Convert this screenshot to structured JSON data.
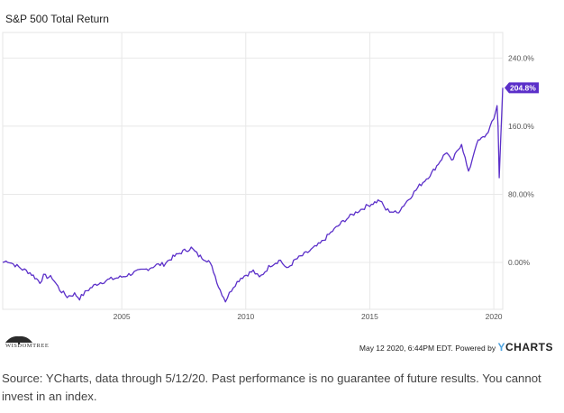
{
  "chart_data": {
    "type": "line",
    "title": "S&P 500 Total Return",
    "x_start": 2000.2,
    "x_end": 2020.36,
    "x_ticks": [
      "2005",
      "2010",
      "2015",
      "2020"
    ],
    "y_ticks": [
      "0.00%",
      "80.00%",
      "160.0%",
      "240.0%"
    ],
    "ylim": [
      -55,
      270
    ],
    "grid": true,
    "series": [
      {
        "color": "#5b2fc9",
        "last_label": "204.8%",
        "points": [
          [
            2000.2,
            0
          ],
          [
            2000.4,
            2
          ],
          [
            2000.7,
            -3
          ],
          [
            2001.0,
            -8
          ],
          [
            2001.3,
            -12
          ],
          [
            2001.7,
            -23
          ],
          [
            2001.85,
            -16
          ],
          [
            2002.2,
            -18
          ],
          [
            2002.5,
            -32
          ],
          [
            2002.8,
            -40
          ],
          [
            2003.1,
            -37
          ],
          [
            2003.3,
            -42
          ],
          [
            2003.6,
            -33
          ],
          [
            2004.0,
            -25
          ],
          [
            2004.5,
            -20
          ],
          [
            2005.0,
            -17
          ],
          [
            2005.5,
            -12
          ],
          [
            2006.0,
            -8
          ],
          [
            2006.4,
            -3
          ],
          [
            2006.7,
            -2
          ],
          [
            2007.0,
            5
          ],
          [
            2007.4,
            12
          ],
          [
            2007.8,
            17
          ],
          [
            2008.1,
            8
          ],
          [
            2008.5,
            2
          ],
          [
            2008.7,
            -10
          ],
          [
            2008.9,
            -28
          ],
          [
            2009.18,
            -45
          ],
          [
            2009.5,
            -28
          ],
          [
            2009.8,
            -18
          ],
          [
            2010.3,
            -10
          ],
          [
            2010.55,
            -18
          ],
          [
            2011.0,
            -3
          ],
          [
            2011.4,
            3
          ],
          [
            2011.65,
            -8
          ],
          [
            2012.0,
            3
          ],
          [
            2012.5,
            12
          ],
          [
            2013.0,
            22
          ],
          [
            2013.5,
            37
          ],
          [
            2014.0,
            50
          ],
          [
            2014.5,
            60
          ],
          [
            2015.0,
            68
          ],
          [
            2015.4,
            73
          ],
          [
            2015.65,
            62
          ],
          [
            2016.1,
            58
          ],
          [
            2016.5,
            72
          ],
          [
            2017.0,
            90
          ],
          [
            2017.5,
            105
          ],
          [
            2017.9,
            122
          ],
          [
            2018.1,
            130
          ],
          [
            2018.3,
            118
          ],
          [
            2018.7,
            140
          ],
          [
            2018.98,
            105
          ],
          [
            2019.3,
            140
          ],
          [
            2019.7,
            150
          ],
          [
            2020.0,
            168
          ],
          [
            2020.13,
            185
          ],
          [
            2020.17,
            160
          ],
          [
            2020.22,
            100
          ],
          [
            2020.28,
            145
          ],
          [
            2020.36,
            205
          ]
        ]
      }
    ]
  },
  "footer": {
    "logo_text": "WISDOMTREE",
    "timestamp": "May 12 2020, 6:44PM EDT.",
    "powered_by": "Powered by",
    "brand_y": "Y",
    "brand_rest": "CHARTS"
  },
  "source_note": "Source: YCharts, data through 5/12/20. Past performance is no guarantee of future results. You cannot invest in an index."
}
